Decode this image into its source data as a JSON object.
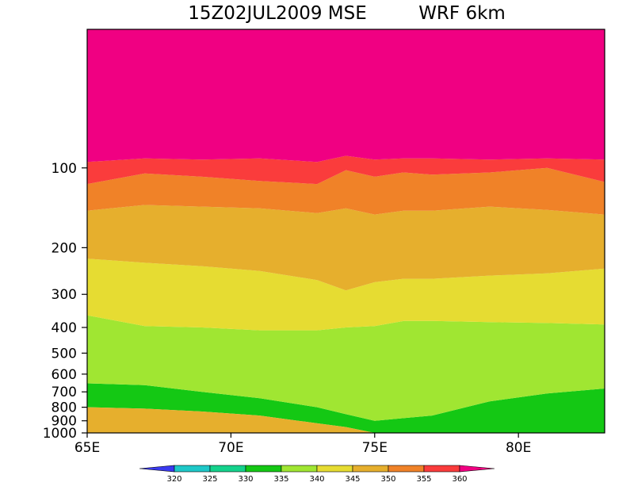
{
  "chart_data": {
    "type": "heatmap",
    "title_left": "15Z02JUL2009 MSE",
    "title_right": "WRF 6km",
    "x_ticks": [
      {
        "value": 65,
        "label": "65E"
      },
      {
        "value": 70,
        "label": "70E"
      },
      {
        "value": 75,
        "label": "75E"
      },
      {
        "value": 80,
        "label": "80E"
      }
    ],
    "xlim": [
      65,
      83
    ],
    "y_scale": "log",
    "ylim": [
      1000,
      30
    ],
    "y_ticks": [
      {
        "value": 100,
        "label": "100"
      },
      {
        "value": 200,
        "label": "200"
      },
      {
        "value": 300,
        "label": "300"
      },
      {
        "value": 400,
        "label": "400"
      },
      {
        "value": 500,
        "label": "500"
      },
      {
        "value": 600,
        "label": "600"
      },
      {
        "value": 700,
        "label": "700"
      },
      {
        "value": 800,
        "label": "800"
      },
      {
        "value": 900,
        "label": "900"
      },
      {
        "value": 1000,
        "label": "1000"
      }
    ],
    "levels": [
      320,
      325,
      330,
      335,
      340,
      345,
      350,
      355,
      360
    ],
    "level_labels": [
      "320",
      "325",
      "330",
      "335",
      "340",
      "345",
      "350",
      "355",
      "360"
    ],
    "colors": [
      "#3a3af0",
      "#1ec8c8",
      "#14d28c",
      "#14c814",
      "#a0e632",
      "#e6dc32",
      "#e6af2d",
      "#f08228",
      "#fa3c3c",
      "#f00082"
    ],
    "boundaries": {
      "x": [
        65,
        67,
        69,
        71,
        73,
        74,
        75,
        76,
        77,
        79,
        81,
        83
      ],
      "p360": [
        95,
        92,
        93,
        92,
        95,
        90,
        93,
        92,
        92,
        93,
        92,
        93
      ],
      "p355": [
        115,
        105,
        108,
        112,
        115,
        102,
        108,
        104,
        106,
        104,
        100,
        113
      ],
      "p350": [
        145,
        138,
        140,
        142,
        148,
        142,
        150,
        145,
        145,
        140,
        144,
        150
      ],
      "p345": [
        220,
        228,
        235,
        245,
        265,
        290,
        270,
        262,
        262,
        255,
        250,
        240
      ],
      "p340": [
        360,
        395,
        400,
        410,
        410,
        400,
        395,
        378,
        378,
        382,
        385,
        390
      ],
      "p335": [
        650,
        660,
        700,
        740,
        800,
        850,
        900,
        880,
        860,
        760,
        710,
        680
      ],
      "p330": [
        800,
        810,
        830,
        860,
        920,
        950,
        1000,
        1000,
        1000,
        1000,
        1000,
        1000
      ]
    }
  }
}
